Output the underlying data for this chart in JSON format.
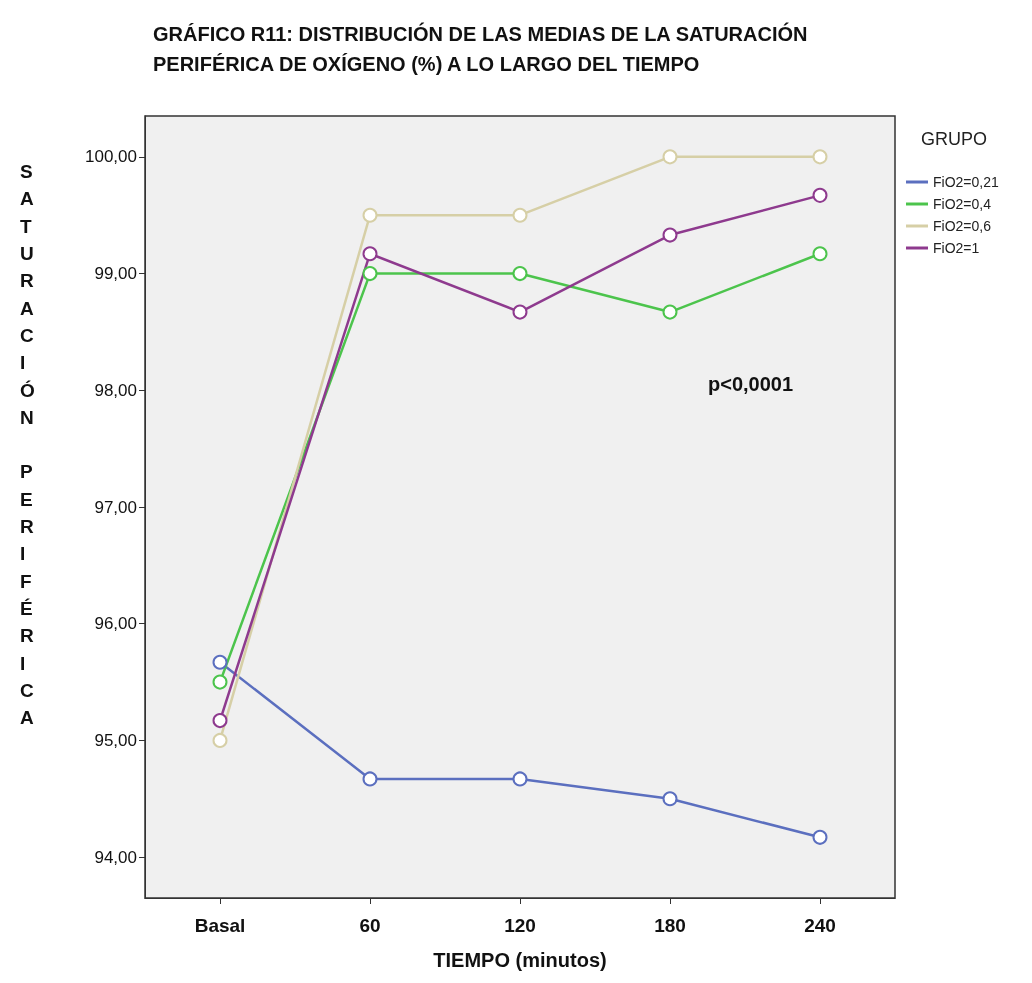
{
  "chart_data": {
    "type": "line",
    "title": "GRÁFICO R11: DISTRIBUCIÓN DE LAS MEDIAS DE LA SATURACIÓN PERIFÉRICA DE OXÍGENO (%) A LO LARGO DEL TIEMPO",
    "xlabel": "TIEMPO (minutos)",
    "ylabel": "SATURACIÓN PERIFÉRICA",
    "legend_title": "GRUPO",
    "categories": [
      "Basal",
      "60",
      "120",
      "180",
      "240"
    ],
    "series": [
      {
        "name": "FiO2=0,21",
        "color": "#5b6fbf",
        "values": [
          95.67,
          94.67,
          94.67,
          94.5,
          94.17
        ]
      },
      {
        "name": "FiO2=0,4",
        "color": "#4cc44c",
        "values": [
          95.5,
          99.0,
          99.0,
          98.67,
          99.17
        ]
      },
      {
        "name": "FiO2=0,6",
        "color": "#d6cfa6",
        "values": [
          95.0,
          99.5,
          99.5,
          100.0,
          100.0
        ]
      },
      {
        "name": "FiO2=1",
        "color": "#8e3a8e",
        "values": [
          95.17,
          99.17,
          98.67,
          99.33,
          99.67
        ]
      }
    ],
    "ylim": [
      93.65,
      100.35
    ],
    "yticks": [
      {
        "value": 94,
        "label": "94,00"
      },
      {
        "value": 95,
        "label": "95,00"
      },
      {
        "value": 96,
        "label": "96,00"
      },
      {
        "value": 97,
        "label": "97,00"
      },
      {
        "value": 98,
        "label": "98,00"
      },
      {
        "value": 99,
        "label": "99,00"
      },
      {
        "value": 100,
        "label": "100,00"
      }
    ],
    "annotations": [
      "p<0,0001"
    ],
    "legend": "right",
    "grid": false,
    "marker": "circle",
    "line_style": "solid"
  }
}
